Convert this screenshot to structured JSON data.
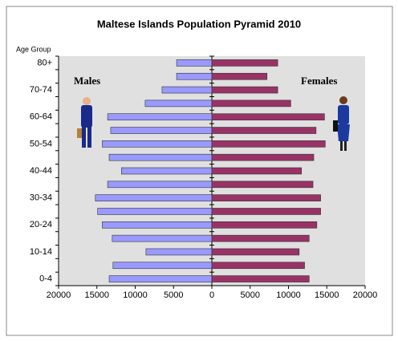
{
  "chart_data": {
    "type": "pyramid",
    "title": "Maltese Islands Population Pyramid 2010",
    "y_label": "Age Group",
    "annotations": [
      "Males",
      "Females"
    ],
    "categories": [
      "0-4",
      null,
      "10-14",
      null,
      "20-24",
      null,
      "30-34",
      null,
      "40-44",
      null,
      "50-54",
      null,
      "60-64",
      null,
      "70-74",
      null,
      "80+"
    ],
    "series": [
      {
        "name": "Males",
        "color": "#9999ff",
        "values": [
          -13400,
          -12900,
          -8600,
          -13000,
          -14300,
          -14900,
          -15200,
          -13600,
          -11800,
          -13400,
          -14300,
          -13200,
          -13600,
          -8700,
          -6500,
          -4600,
          -4600
        ]
      },
      {
        "name": "Females",
        "color": "#993366",
        "values": [
          12700,
          12100,
          11400,
          12700,
          13700,
          14200,
          14200,
          13200,
          11700,
          13300,
          14800,
          13600,
          14700,
          10300,
          8600,
          7200,
          8600
        ]
      }
    ],
    "xlim": [
      -20000,
      20000
    ],
    "xticks": [
      {
        "value": -20000,
        "label": "20000"
      },
      {
        "value": -15000,
        "label": "15000"
      },
      {
        "value": -10000,
        "label": "10000"
      },
      {
        "value": -5000,
        "label": "5000"
      },
      0,
      5000,
      10000,
      15000,
      20000
    ],
    "plot_background": "#e0e0e0"
  }
}
